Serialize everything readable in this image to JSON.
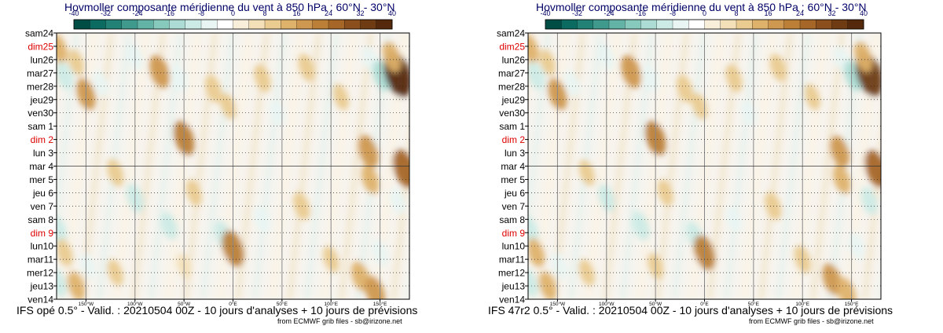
{
  "panels": [
    {
      "title": "Hovmoller composante méridienne du vent à 850 hPa : 60°N - 30°N",
      "caption": "IFS opé 0.5° - Valid. : 20210504 00Z - 10 jours d'analyses + 10 jours de prévisions",
      "credit": "from ECMWF grib files - sb@irizone.net"
    },
    {
      "title": "Hovmoller composante méridienne du vent à 850 hPa : 60°N - 30°N",
      "caption": "IFS 47r2 0.5° - Valid. : 20210504 00Z - 10 jours d'analyses + 10 jours de prévisions",
      "credit": "from ECMWF grib files - sb@irizone.net"
    }
  ],
  "chart_data": [
    {
      "type": "heatmap",
      "colorbar": {
        "ticks": [
          "-40",
          "-32",
          "-24",
          "-16",
          "-8",
          "0",
          "8",
          "16",
          "24",
          "32",
          "40"
        ],
        "colors": [
          "#004d45",
          "#0b6b61",
          "#238276",
          "#3f9a8d",
          "#62b2a6",
          "#88c9be",
          "#acdcd4",
          "#cdebe6",
          "#e9f5f3",
          "#ffffff",
          "#f9eeda",
          "#f3e0b8",
          "#eacb90",
          "#dfb26c",
          "#cf9850",
          "#bb7f38",
          "#a56627",
          "#8a4f1c",
          "#6e3b13",
          "#55290c"
        ]
      },
      "y_labels": [
        {
          "text": "sam24",
          "color": "#000000"
        },
        {
          "text": "dim25",
          "color": "#dd0000"
        },
        {
          "text": "lun26",
          "color": "#000000"
        },
        {
          "text": "mar27",
          "color": "#000000"
        },
        {
          "text": "mer28",
          "color": "#000000"
        },
        {
          "text": "jeu29",
          "color": "#000000"
        },
        {
          "text": "ven30",
          "color": "#000000"
        },
        {
          "text": "sam 1",
          "color": "#000000"
        },
        {
          "text": "dim 2",
          "color": "#dd0000"
        },
        {
          "text": "lun 3",
          "color": "#000000"
        },
        {
          "text": "mar 4",
          "color": "#000000"
        },
        {
          "text": "mer 5",
          "color": "#000000"
        },
        {
          "text": "jeu 6",
          "color": "#000000"
        },
        {
          "text": "ven 7",
          "color": "#000000"
        },
        {
          "text": "sam 8",
          "color": "#000000"
        },
        {
          "text": "dim 9",
          "color": "#dd0000"
        },
        {
          "text": "lun10",
          "color": "#000000"
        },
        {
          "text": "mar11",
          "color": "#000000"
        },
        {
          "text": "mer12",
          "color": "#000000"
        },
        {
          "text": "jeu13",
          "color": "#000000"
        },
        {
          "text": "ven14",
          "color": "#000000"
        }
      ],
      "x_ticks": [
        {
          "label": "150°W",
          "lon": -150
        },
        {
          "label": "100°W",
          "lon": -100
        },
        {
          "label": "50°W",
          "lon": -50
        },
        {
          "label": "0°E",
          "lon": 0
        },
        {
          "label": "50°E",
          "lon": 50
        },
        {
          "label": "100°E",
          "lon": 100
        },
        {
          "label": "150°E",
          "lon": 150
        }
      ],
      "xlim": [
        -180,
        180
      ],
      "analysis_forecast_split": "mar 4",
      "blobs": [
        {
          "lon": -178,
          "day": 1.2,
          "v": 12
        },
        {
          "lon": -172,
          "day": 3.2,
          "v": -10
        },
        {
          "lon": -150,
          "day": 4.6,
          "v": 16
        },
        {
          "lon": -160,
          "day": 2.2,
          "v": 8
        },
        {
          "lon": -135,
          "day": 3.8,
          "v": -6
        },
        {
          "lon": -100,
          "day": 1.8,
          "v": -8
        },
        {
          "lon": -75,
          "day": 2.9,
          "v": 18
        },
        {
          "lon": -55,
          "day": 3.4,
          "v": -8
        },
        {
          "lon": -50,
          "day": 7.9,
          "v": 20
        },
        {
          "lon": -20,
          "day": 4.2,
          "v": 10
        },
        {
          "lon": -5,
          "day": 5.5,
          "v": 8
        },
        {
          "lon": 30,
          "day": 3.4,
          "v": 10
        },
        {
          "lon": 45,
          "day": 6.0,
          "v": -6
        },
        {
          "lon": 75,
          "day": 2.6,
          "v": 10
        },
        {
          "lon": 110,
          "day": 4.8,
          "v": 8
        },
        {
          "lon": 140,
          "day": 2.0,
          "v": -8
        },
        {
          "lon": 152,
          "day": 3.2,
          "v": -14
        },
        {
          "lon": 168,
          "day": 3.1,
          "v": 36
        },
        {
          "lon": 162,
          "day": 1.8,
          "v": 14
        },
        {
          "lon": 138,
          "day": 8.9,
          "v": 18
        },
        {
          "lon": 140,
          "day": 11.0,
          "v": 12
        },
        {
          "lon": 175,
          "day": 10.2,
          "v": 26
        },
        {
          "lon": 168,
          "day": 12.6,
          "v": -8
        },
        {
          "lon": -120,
          "day": 10.5,
          "v": 10
        },
        {
          "lon": -100,
          "day": 12.4,
          "v": -12
        },
        {
          "lon": -65,
          "day": 14.5,
          "v": -10
        },
        {
          "lon": -40,
          "day": 12.0,
          "v": 8
        },
        {
          "lon": -10,
          "day": 15.2,
          "v": -12
        },
        {
          "lon": 0,
          "day": 16.2,
          "v": 22
        },
        {
          "lon": 30,
          "day": 14.0,
          "v": -8
        },
        {
          "lon": 70,
          "day": 13.0,
          "v": 10
        },
        {
          "lon": -178,
          "day": 14.8,
          "v": -10
        },
        {
          "lon": -172,
          "day": 16.5,
          "v": 10
        },
        {
          "lon": -160,
          "day": 19.0,
          "v": 12
        },
        {
          "lon": -178,
          "day": 18.8,
          "v": -10
        },
        {
          "lon": -148,
          "day": 17.5,
          "v": -6
        },
        {
          "lon": 100,
          "day": 17.0,
          "v": 8
        },
        {
          "lon": 130,
          "day": 18.3,
          "v": 14
        },
        {
          "lon": 145,
          "day": 19.5,
          "v": 18
        },
        {
          "lon": 150,
          "day": 16.5,
          "v": -8
        },
        {
          "lon": -120,
          "day": 18.0,
          "v": 8
        },
        {
          "lon": -50,
          "day": 17.5,
          "v": 6
        }
      ]
    },
    {
      "type": "heatmap",
      "colorbar": {
        "ticks": [
          "-40",
          "-32",
          "-24",
          "-16",
          "-8",
          "0",
          "8",
          "16",
          "24",
          "32",
          "40"
        ],
        "colors": [
          "#004d45",
          "#0b6b61",
          "#238276",
          "#3f9a8d",
          "#62b2a6",
          "#88c9be",
          "#acdcd4",
          "#cdebe6",
          "#e9f5f3",
          "#ffffff",
          "#f9eeda",
          "#f3e0b8",
          "#eacb90",
          "#dfb26c",
          "#cf9850",
          "#bb7f38",
          "#a56627",
          "#8a4f1c",
          "#6e3b13",
          "#55290c"
        ]
      },
      "y_labels": [
        {
          "text": "sam24",
          "color": "#000000"
        },
        {
          "text": "dim25",
          "color": "#dd0000"
        },
        {
          "text": "lun26",
          "color": "#000000"
        },
        {
          "text": "mar27",
          "color": "#000000"
        },
        {
          "text": "mer28",
          "color": "#000000"
        },
        {
          "text": "jeu29",
          "color": "#000000"
        },
        {
          "text": "ven30",
          "color": "#000000"
        },
        {
          "text": "sam 1",
          "color": "#000000"
        },
        {
          "text": "dim 2",
          "color": "#dd0000"
        },
        {
          "text": "lun 3",
          "color": "#000000"
        },
        {
          "text": "mar 4",
          "color": "#000000"
        },
        {
          "text": "mer 5",
          "color": "#000000"
        },
        {
          "text": "jeu 6",
          "color": "#000000"
        },
        {
          "text": "ven 7",
          "color": "#000000"
        },
        {
          "text": "sam 8",
          "color": "#000000"
        },
        {
          "text": "dim 9",
          "color": "#dd0000"
        },
        {
          "text": "lun10",
          "color": "#000000"
        },
        {
          "text": "mar11",
          "color": "#000000"
        },
        {
          "text": "mer12",
          "color": "#000000"
        },
        {
          "text": "jeu13",
          "color": "#000000"
        },
        {
          "text": "ven14",
          "color": "#000000"
        }
      ],
      "x_ticks": [
        {
          "label": "150°W",
          "lon": -150
        },
        {
          "label": "100°W",
          "lon": -100
        },
        {
          "label": "50°W",
          "lon": -50
        },
        {
          "label": "0°E",
          "lon": 0
        },
        {
          "label": "50°E",
          "lon": 50
        },
        {
          "label": "100°E",
          "lon": 100
        },
        {
          "label": "150°E",
          "lon": 150
        }
      ],
      "xlim": [
        -180,
        180
      ],
      "analysis_forecast_split": "mar 4",
      "blobs": [
        {
          "lon": -178,
          "day": 1.2,
          "v": 12
        },
        {
          "lon": -172,
          "day": 3.2,
          "v": -10
        },
        {
          "lon": -150,
          "day": 4.6,
          "v": 16
        },
        {
          "lon": -160,
          "day": 2.2,
          "v": 8
        },
        {
          "lon": -135,
          "day": 3.8,
          "v": -6
        },
        {
          "lon": -100,
          "day": 1.8,
          "v": -8
        },
        {
          "lon": -75,
          "day": 2.9,
          "v": 18
        },
        {
          "lon": -55,
          "day": 3.4,
          "v": -8
        },
        {
          "lon": -50,
          "day": 7.9,
          "v": 20
        },
        {
          "lon": -20,
          "day": 4.2,
          "v": 10
        },
        {
          "lon": -5,
          "day": 5.5,
          "v": 8
        },
        {
          "lon": 30,
          "day": 3.4,
          "v": 10
        },
        {
          "lon": 45,
          "day": 6.0,
          "v": -6
        },
        {
          "lon": 75,
          "day": 2.6,
          "v": 10
        },
        {
          "lon": 110,
          "day": 4.8,
          "v": 8
        },
        {
          "lon": 140,
          "day": 2.0,
          "v": -8
        },
        {
          "lon": 152,
          "day": 3.2,
          "v": -14
        },
        {
          "lon": 168,
          "day": 3.1,
          "v": 34
        },
        {
          "lon": 162,
          "day": 1.8,
          "v": 14
        },
        {
          "lon": 138,
          "day": 8.9,
          "v": 16
        },
        {
          "lon": 140,
          "day": 11.0,
          "v": 12
        },
        {
          "lon": 175,
          "day": 10.2,
          "v": 24
        },
        {
          "lon": 168,
          "day": 12.6,
          "v": -10
        },
        {
          "lon": -120,
          "day": 10.5,
          "v": 8
        },
        {
          "lon": -100,
          "day": 12.4,
          "v": -10
        },
        {
          "lon": -65,
          "day": 14.5,
          "v": -12
        },
        {
          "lon": -40,
          "day": 12.0,
          "v": 8
        },
        {
          "lon": -10,
          "day": 15.2,
          "v": -10
        },
        {
          "lon": 0,
          "day": 16.5,
          "v": 20
        },
        {
          "lon": 30,
          "day": 14.0,
          "v": -6
        },
        {
          "lon": 70,
          "day": 13.0,
          "v": 10
        },
        {
          "lon": -178,
          "day": 14.8,
          "v": -10
        },
        {
          "lon": -172,
          "day": 16.5,
          "v": 12
        },
        {
          "lon": -160,
          "day": 19.0,
          "v": 12
        },
        {
          "lon": -178,
          "day": 18.8,
          "v": -10
        },
        {
          "lon": -148,
          "day": 17.5,
          "v": -8
        },
        {
          "lon": 100,
          "day": 17.0,
          "v": 10
        },
        {
          "lon": 130,
          "day": 18.5,
          "v": 16
        },
        {
          "lon": 145,
          "day": 19.5,
          "v": 14
        },
        {
          "lon": 155,
          "day": 16.0,
          "v": -8
        },
        {
          "lon": -120,
          "day": 18.0,
          "v": 8
        },
        {
          "lon": -50,
          "day": 17.5,
          "v": 8
        }
      ]
    }
  ]
}
